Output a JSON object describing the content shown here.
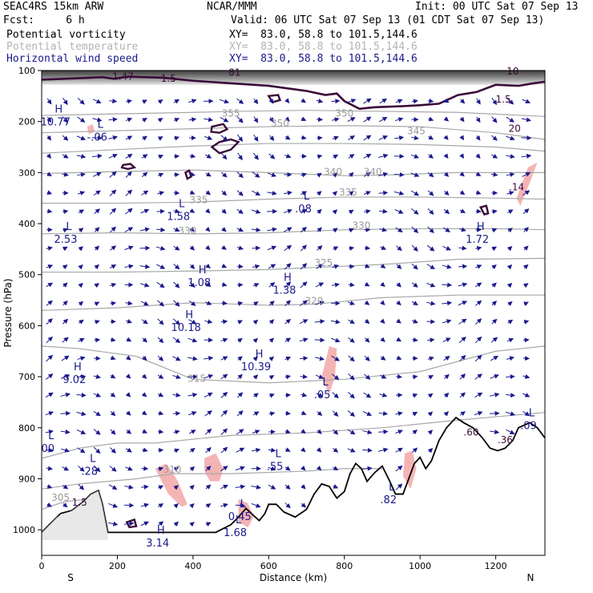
{
  "header": {
    "model": "SEAC4RS 15km ARW",
    "fcst": "Fcst:     6 h",
    "center": "NCAR/MMM",
    "init": "Init: 00 UTC Sat 07 Sep 13",
    "valid": "Valid: 06 UTC Sat 07 Sep 13 (01 CDT Sat 07 Sep 13)"
  },
  "fields": [
    {
      "name": "Potential vorticity",
      "xy": "XY=  83.0, 58.8 to 101.5,144.6",
      "color": "#000000"
    },
    {
      "name": "Potential temperature",
      "xy": "XY=  83.0, 58.8 to 101.5,144.6",
      "color": "#b4b4b4"
    },
    {
      "name": "Horizontal wind speed",
      "xy": "XY=  83.0, 58.8 to 101.5,144.6",
      "color": "#1a1a8c"
    }
  ],
  "colors": {
    "pv_contour": "#3a0a3a",
    "isentrope": "#a8a8a8",
    "wind_vector": "#1a1a8c",
    "pink_fill": "#f4b4b4",
    "terrain": "#000000"
  },
  "chart_data": {
    "type": "cross-section",
    "xlabel": "Distance (km)",
    "ylabel": "Pressure (hPa)",
    "xlim": [
      0,
      1330
    ],
    "ylim": [
      1050,
      100
    ],
    "x_ticks": [
      {
        "value": 0,
        "label": "0"
      },
      {
        "value": 200,
        "label": "200"
      },
      {
        "value": 400,
        "label": "400"
      },
      {
        "value": 600,
        "label": "600"
      },
      {
        "value": 800,
        "label": "800"
      },
      {
        "value": 1000,
        "label": "1000"
      },
      {
        "value": 1200,
        "label": "1200"
      }
    ],
    "y_ticks": [
      {
        "value": 100,
        "label": "100"
      },
      {
        "value": 200,
        "label": "200"
      },
      {
        "value": 300,
        "label": "300"
      },
      {
        "value": 400,
        "label": "400"
      },
      {
        "value": 500,
        "label": "500"
      },
      {
        "value": 600,
        "label": "600"
      },
      {
        "value": 700,
        "label": "700"
      },
      {
        "value": 800,
        "label": "800"
      },
      {
        "value": 900,
        "label": "900"
      },
      {
        "value": 1000,
        "label": "1000"
      }
    ],
    "endpoints": {
      "left": "S",
      "right": "N"
    },
    "isentrope_labels": [
      {
        "text": "355",
        "x": 500,
        "p": 190
      },
      {
        "text": "350",
        "x": 630,
        "p": 210
      },
      {
        "text": "350",
        "x": 800,
        "p": 190
      },
      {
        "text": "345",
        "x": 990,
        "p": 225
      },
      {
        "text": "340",
        "x": 770,
        "p": 305
      },
      {
        "text": "340",
        "x": 875,
        "p": 305
      },
      {
        "text": "335",
        "x": 415,
        "p": 360
      },
      {
        "text": "335",
        "x": 810,
        "p": 345
      },
      {
        "text": "330",
        "x": 385,
        "p": 420
      },
      {
        "text": "330",
        "x": 845,
        "p": 410
      },
      {
        "text": "325",
        "x": 745,
        "p": 483
      },
      {
        "text": "320",
        "x": 720,
        "p": 558
      },
      {
        "text": "315",
        "x": 410,
        "p": 710
      },
      {
        "text": "310",
        "x": 345,
        "p": 888
      },
      {
        "text": "305",
        "x": 50,
        "p": 943
      }
    ],
    "pv_labels": [
      {
        "text": "1.47",
        "x": 215,
        "p": 118
      },
      {
        "text": "1.5",
        "x": 335,
        "p": 122
      },
      {
        "text": "81",
        "x": 510,
        "p": 110
      },
      {
        "text": "1.5",
        "x": 1220,
        "p": 163
      },
      {
        "text": "10",
        "x": 1245,
        "p": 108
      },
      {
        "text": "20",
        "x": 1250,
        "p": 220
      },
      {
        "text": ".14",
        "x": 1255,
        "p": 335
      },
      {
        "text": ".60",
        "x": 1135,
        "p": 815
      },
      {
        "text": ".36",
        "x": 1225,
        "p": 830
      },
      {
        "text": "1.5",
        "x": 100,
        "p": 953
      }
    ],
    "extrema": [
      {
        "kind": "H",
        "value": "10.77",
        "x": 45,
        "p": 195
      },
      {
        "kind": "L",
        "value": "-.06",
        "x": 155,
        "p": 225
      },
      {
        "kind": "L",
        "value": "1.58",
        "x": 370,
        "p": 380
      },
      {
        "kind": "L",
        "value": ".08",
        "x": 700,
        "p": 365
      },
      {
        "kind": "L",
        "value": "2.53",
        "x": 72,
        "p": 425
      },
      {
        "kind": "H",
        "value": "1.72",
        "x": 1160,
        "p": 425
      },
      {
        "kind": "H",
        "value": "1.08",
        "x": 425,
        "p": 510
      },
      {
        "kind": "H",
        "value": "1.38",
        "x": 650,
        "p": 525
      },
      {
        "kind": "H",
        "value": "10.18",
        "x": 390,
        "p": 598
      },
      {
        "kind": "H",
        "value": "10.39",
        "x": 575,
        "p": 675
      },
      {
        "kind": "H",
        "value": "9.02",
        "x": 95,
        "p": 700
      },
      {
        "kind": "L",
        "value": ".05",
        "x": 750,
        "p": 730
      },
      {
        "kind": "L",
        "value": ".09",
        "x": 1295,
        "p": 790
      },
      {
        "kind": "L",
        "value": "00",
        "x": 25,
        "p": 835
      },
      {
        "kind": "L",
        "value": ".55",
        "x": 625,
        "p": 870
      },
      {
        "kind": "L",
        "value": ".28",
        "x": 135,
        "p": 880
      },
      {
        "kind": "L",
        "value": ".82",
        "x": 925,
        "p": 935
      },
      {
        "kind": "L",
        "value": "0.45",
        "x": 532,
        "p": 968
      },
      {
        "kind": "L",
        "value": "1.68",
        "x": 520,
        "p": 1000
      },
      {
        "kind": "H",
        "value": "3.14",
        "x": 315,
        "p": 1020
      }
    ],
    "terrain_surface": [
      [
        0,
        1005
      ],
      [
        20,
        990
      ],
      [
        50,
        968
      ],
      [
        80,
        962
      ],
      [
        110,
        945
      ],
      [
        130,
        930
      ],
      [
        150,
        923
      ],
      [
        160,
        948
      ],
      [
        175,
        1005
      ],
      [
        200,
        1005
      ],
      [
        300,
        1005
      ],
      [
        400,
        1005
      ],
      [
        460,
        1005
      ],
      [
        500,
        990
      ],
      [
        520,
        975
      ],
      [
        540,
        958
      ],
      [
        560,
        972
      ],
      [
        575,
        982
      ],
      [
        590,
        968
      ],
      [
        600,
        950
      ],
      [
        620,
        950
      ],
      [
        640,
        965
      ],
      [
        670,
        975
      ],
      [
        700,
        960
      ],
      [
        720,
        930
      ],
      [
        740,
        910
      ],
      [
        760,
        915
      ],
      [
        780,
        938
      ],
      [
        800,
        925
      ],
      [
        815,
        890
      ],
      [
        830,
        870
      ],
      [
        845,
        880
      ],
      [
        860,
        905
      ],
      [
        880,
        888
      ],
      [
        900,
        875
      ],
      [
        920,
        905
      ],
      [
        935,
        930
      ],
      [
        955,
        930
      ],
      [
        970,
        900
      ],
      [
        985,
        870
      ],
      [
        1000,
        858
      ],
      [
        1015,
        880
      ],
      [
        1030,
        865
      ],
      [
        1050,
        825
      ],
      [
        1070,
        800
      ],
      [
        1095,
        780
      ],
      [
        1115,
        790
      ],
      [
        1140,
        800
      ],
      [
        1165,
        820
      ],
      [
        1185,
        840
      ],
      [
        1205,
        845
      ],
      [
        1225,
        840
      ],
      [
        1245,
        825
      ],
      [
        1260,
        800
      ],
      [
        1275,
        795
      ],
      [
        1290,
        790
      ],
      [
        1310,
        800
      ],
      [
        1330,
        820
      ]
    ]
  }
}
